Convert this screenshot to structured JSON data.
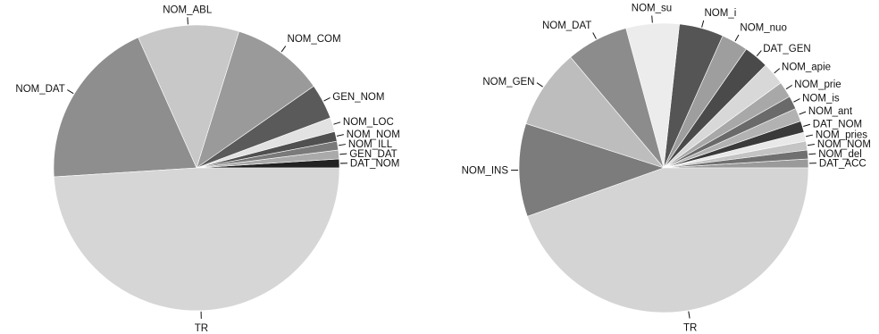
{
  "chart_data": [
    {
      "type": "pie",
      "title": "",
      "slices": [
        {
          "label": "DAT_NOM",
          "value": 1.0,
          "color": "#222222"
        },
        {
          "label": "GEN_DAT",
          "value": 1.0,
          "color": "#aaaaaa"
        },
        {
          "label": "NOM_ILL",
          "value": 1.0,
          "color": "#7a7a7a"
        },
        {
          "label": "NOM_NOM",
          "value": 1.1,
          "color": "#505050"
        },
        {
          "label": "NOM_LOC",
          "value": 1.6,
          "color": "#e2e2e2"
        },
        {
          "label": "GEN_NOM",
          "value": 4.0,
          "color": "#5a5a5a"
        },
        {
          "label": "NOM_COM",
          "value": 10.5,
          "color": "#9a9a9a"
        },
        {
          "label": "NOM_ABL",
          "value": 11.5,
          "color": "#c8c8c8"
        },
        {
          "label": "NOM_DAT",
          "value": 19.3,
          "color": "#8e8e8e"
        },
        {
          "label": "TR",
          "value": 49.0,
          "color": "#d6d6d6"
        }
      ]
    },
    {
      "type": "pie",
      "title": "",
      "slices": [
        {
          "label": "DAT_ACC",
          "value": 1.0,
          "color": "#9a9a9a"
        },
        {
          "label": "NOM_del",
          "value": 1.0,
          "color": "#707070"
        },
        {
          "label": "NOM_NOM",
          "value": 1.0,
          "color": "#c4c4c4"
        },
        {
          "label": "NOM_pries",
          "value": 1.0,
          "color": "#e8e8e8"
        },
        {
          "label": "DAT_NOM",
          "value": 1.3,
          "color": "#3a3a3a"
        },
        {
          "label": "NOM_ant",
          "value": 1.5,
          "color": "#b2b2b2"
        },
        {
          "label": "NOM_is",
          "value": 1.5,
          "color": "#6a6a6a"
        },
        {
          "label": "NOM_prie",
          "value": 1.8,
          "color": "#a8a8a8"
        },
        {
          "label": "NOM_apie",
          "value": 2.6,
          "color": "#d8d8d8"
        },
        {
          "label": "DAT_GEN",
          "value": 2.8,
          "color": "#4a4a4a"
        },
        {
          "label": "NOM_nuo",
          "value": 3.0,
          "color": "#9e9e9e"
        },
        {
          "label": "NOM_i",
          "value": 5.0,
          "color": "#555555"
        },
        {
          "label": "NOM_su",
          "value": 6.0,
          "color": "#ececec"
        },
        {
          "label": "NOM_DAT",
          "value": 7.0,
          "color": "#8c8c8c"
        },
        {
          "label": "NOM_GEN",
          "value": 9.0,
          "color": "#bdbdbd"
        },
        {
          "label": "NOM_INS",
          "value": 10.5,
          "color": "#7c7c7c"
        },
        {
          "label": "TR",
          "value": 45.0,
          "color": "#d4d4d4"
        }
      ]
    }
  ]
}
